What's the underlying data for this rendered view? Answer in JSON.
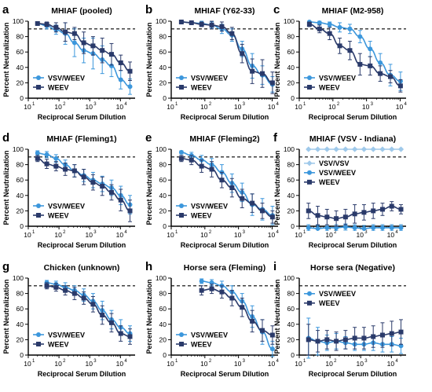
{
  "figure": {
    "shared": {
      "ylabel": "Percent Neutralization",
      "xlabel": "Reciprocal Serum Dilution",
      "y_ticks": [
        "0",
        "20",
        "40",
        "60",
        "80",
        "100"
      ],
      "x_ticks": [
        "10",
        "10",
        "10",
        "10",
        "10"
      ],
      "x_exponents": [
        "1",
        "2",
        "3",
        "4"
      ],
      "threshold": 90,
      "colors": {
        "VSV/WEEV": "#3c97dc",
        "WEEV": "#2a3a6a",
        "VSV/VSV": "#9fc9ea"
      }
    }
  },
  "chart_data": [
    {
      "type": "scatter",
      "letter": "a",
      "title": "MHIAF (pooled)",
      "xlabel": "Reciprocal Serum Dilution",
      "ylabel": "Percent Neutralization",
      "x_scale": "log",
      "xlim": [
        10,
        30000
      ],
      "ylim": [
        0,
        100
      ],
      "threshold": 90,
      "legend": "bottom-left",
      "series": [
        {
          "name": "VSV/WEEV",
          "x": [
            20,
            40,
            80,
            160,
            320,
            640,
            1280,
            2560,
            5120,
            10240,
            20480
          ],
          "y": [
            97,
            94,
            89,
            84,
            72,
            62,
            58,
            50,
            42,
            24,
            15
          ],
          "err": [
            2,
            4,
            6,
            14,
            18,
            16,
            20,
            18,
            14,
            12,
            10
          ]
        },
        {
          "name": "WEEV",
          "x": [
            20,
            40,
            80,
            160,
            320,
            640,
            1280,
            2560,
            5120,
            10240,
            20480
          ],
          "y": [
            97,
            96,
            92,
            86,
            84,
            72,
            68,
            62,
            57,
            46,
            35
          ],
          "err": [
            2,
            3,
            6,
            12,
            8,
            14,
            12,
            16,
            14,
            10,
            12
          ]
        }
      ]
    },
    {
      "type": "scatter",
      "letter": "b",
      "title": "MHIAF (Y62-33)",
      "xlabel": "Reciprocal Serum Dilution",
      "ylabel": "Percent Neutralization",
      "x_scale": "log",
      "xlim": [
        10,
        15000
      ],
      "ylim": [
        0,
        100
      ],
      "threshold": 90,
      "legend": "bottom-left",
      "series": [
        {
          "name": "VSV/WEEV",
          "x": [
            20,
            40,
            80,
            160,
            320,
            640,
            1280,
            2560,
            5120,
            10240
          ],
          "y": [
            99,
            98,
            97,
            95,
            90,
            82,
            64,
            42,
            30,
            18
          ],
          "err": [
            1,
            2,
            3,
            4,
            6,
            8,
            10,
            16,
            12,
            10
          ]
        },
        {
          "name": "WEEV",
          "x": [
            20,
            40,
            80,
            160,
            320,
            640,
            1280,
            2560,
            5120,
            10240
          ],
          "y": [
            99,
            98,
            96,
            95,
            93,
            84,
            58,
            35,
            32,
            20
          ],
          "err": [
            1,
            2,
            3,
            5,
            6,
            8,
            12,
            16,
            18,
            14
          ]
        }
      ]
    },
    {
      "type": "scatter",
      "letter": "c",
      "title": "MHIAF (M2-958)",
      "xlabel": "Reciprocal Serum Dilution",
      "ylabel": "Percent Neutralization",
      "x_scale": "log",
      "xlim": [
        10,
        15000
      ],
      "ylim": [
        0,
        100
      ],
      "threshold": 90,
      "legend": "bottom-left",
      "series": [
        {
          "name": "VSV/WEEV",
          "x": [
            20,
            40,
            80,
            160,
            320,
            640,
            1280,
            2560,
            5120,
            10240
          ],
          "y": [
            99,
            98,
            96,
            92,
            90,
            80,
            64,
            46,
            30,
            22
          ],
          "err": [
            1,
            2,
            3,
            6,
            6,
            8,
            10,
            12,
            14,
            12
          ]
        },
        {
          "name": "WEEV",
          "x": [
            20,
            40,
            80,
            160,
            320,
            640,
            1280,
            2560,
            5120,
            10240
          ],
          "y": [
            96,
            90,
            84,
            68,
            62,
            44,
            42,
            32,
            28,
            16
          ],
          "err": [
            3,
            5,
            8,
            10,
            12,
            14,
            12,
            10,
            8,
            8
          ]
        }
      ]
    },
    {
      "type": "scatter",
      "letter": "d",
      "title": "MHIAF (Fleming1)",
      "xlabel": "Reciprocal Serum Dilution",
      "ylabel": "Percent Neutralization",
      "x_scale": "log",
      "xlim": [
        10,
        30000
      ],
      "ylim": [
        0,
        100
      ],
      "threshold": 90,
      "legend": "bottom-left",
      "series": [
        {
          "name": "VSV/WEEV",
          "x": [
            20,
            40,
            80,
            160,
            320,
            640,
            1280,
            2560,
            5120,
            10240,
            20480
          ],
          "y": [
            95,
            93,
            88,
            80,
            72,
            66,
            60,
            55,
            50,
            40,
            28
          ],
          "err": [
            3,
            4,
            5,
            6,
            8,
            8,
            10,
            10,
            10,
            12,
            12
          ]
        },
        {
          "name": "WEEV",
          "x": [
            20,
            40,
            80,
            160,
            320,
            640,
            1280,
            2560,
            5120,
            10240,
            20480
          ],
          "y": [
            88,
            81,
            78,
            74,
            72,
            64,
            57,
            52,
            44,
            34,
            20
          ],
          "err": [
            4,
            6,
            6,
            8,
            8,
            10,
            10,
            12,
            10,
            14,
            14
          ]
        }
      ]
    },
    {
      "type": "scatter",
      "letter": "e",
      "title": "MHIAF (Fleming2)",
      "xlabel": "Reciprocal Serum Dilution",
      "ylabel": "Percent Neutralization",
      "x_scale": "log",
      "xlim": [
        10,
        15000
      ],
      "ylim": [
        0,
        100
      ],
      "threshold": 90,
      "legend": "bottom-left",
      "series": [
        {
          "name": "VSV/WEEV",
          "x": [
            20,
            40,
            80,
            160,
            320,
            640,
            1280,
            2560,
            5120,
            10240
          ],
          "y": [
            96,
            92,
            86,
            80,
            70,
            56,
            44,
            28,
            22,
            14
          ],
          "err": [
            2,
            4,
            6,
            8,
            10,
            12,
            12,
            14,
            14,
            12
          ]
        },
        {
          "name": "WEEV",
          "x": [
            20,
            40,
            80,
            160,
            320,
            640,
            1280,
            2560,
            5120,
            10240
          ],
          "y": [
            88,
            86,
            78,
            74,
            60,
            50,
            36,
            30,
            20,
            12
          ],
          "err": [
            4,
            6,
            8,
            10,
            10,
            12,
            12,
            12,
            10,
            8
          ]
        }
      ]
    },
    {
      "type": "scatter",
      "letter": "f",
      "title": "MHIAF (VSV - Indiana)",
      "xlabel": "Reciprocal Serum Dilution",
      "ylabel": "Percent Neutralization",
      "x_scale": "log",
      "xlim": [
        10,
        30000
      ],
      "ylim": [
        0,
        100
      ],
      "threshold": 90,
      "legend": "top-left",
      "series": [
        {
          "name": "VSV/VSV",
          "x": [
            20,
            40,
            80,
            160,
            320,
            640,
            1280,
            2560,
            5120,
            10240,
            20480
          ],
          "y": [
            100,
            100,
            100,
            100,
            100,
            100,
            100,
            100,
            100,
            100,
            100
          ],
          "err": [
            1,
            1,
            1,
            1,
            1,
            1,
            1,
            1,
            1,
            1,
            1
          ]
        },
        {
          "name": "VSV/WEEV",
          "x": [
            20,
            40,
            80,
            160,
            320,
            640,
            1280,
            2560,
            5120,
            10240,
            20480
          ],
          "y": [
            -2,
            -3,
            -2,
            -2,
            -1,
            -2,
            -3,
            -2,
            -2,
            -2,
            -2
          ],
          "err": [
            4,
            4,
            4,
            4,
            4,
            4,
            4,
            4,
            4,
            4,
            4
          ]
        },
        {
          "name": "WEEV",
          "x": [
            20,
            40,
            80,
            160,
            320,
            640,
            1280,
            2560,
            5120,
            10240,
            20480
          ],
          "y": [
            20,
            14,
            12,
            10,
            12,
            16,
            18,
            20,
            22,
            26,
            22
          ],
          "err": [
            10,
            12,
            10,
            10,
            10,
            12,
            10,
            10,
            8,
            6,
            6
          ]
        }
      ]
    },
    {
      "type": "scatter",
      "letter": "g",
      "title": "Chicken (unknown)",
      "xlabel": "Reciprocal Serum Dilution",
      "ylabel": "Percent Neutralization",
      "x_scale": "log",
      "xlim": [
        10,
        30000
      ],
      "ylim": [
        0,
        100
      ],
      "threshold": 90,
      "legend": "bottom-left",
      "series": [
        {
          "name": "VSV/WEEV",
          "x": [
            40,
            80,
            160,
            320,
            640,
            1280,
            2560,
            5120,
            10240,
            20480
          ],
          "y": [
            94,
            92,
            88,
            84,
            78,
            70,
            58,
            46,
            36,
            28
          ],
          "err": [
            3,
            4,
            6,
            6,
            8,
            10,
            12,
            12,
            10,
            10
          ]
        },
        {
          "name": "WEEV",
          "x": [
            40,
            80,
            160,
            320,
            640,
            1280,
            2560,
            5120,
            10240,
            20480
          ],
          "y": [
            90,
            88,
            84,
            80,
            74,
            66,
            52,
            42,
            28,
            24
          ],
          "err": [
            4,
            5,
            6,
            8,
            8,
            10,
            12,
            12,
            10,
            10
          ]
        }
      ]
    },
    {
      "type": "scatter",
      "letter": "h",
      "title": "Horse sera (Fleming)",
      "xlabel": "Reciprocal Serum Dilution",
      "ylabel": "Percent Neutralization",
      "x_scale": "log",
      "xlim": [
        10,
        15000
      ],
      "ylim": [
        0,
        100
      ],
      "threshold": 90,
      "legend": "bottom-left",
      "series": [
        {
          "name": "VSV/WEEV",
          "x": [
            80,
            160,
            320,
            640,
            1280,
            2560,
            5120,
            10240
          ],
          "y": [
            96,
            94,
            90,
            82,
            70,
            50,
            30,
            8
          ],
          "err": [
            3,
            4,
            6,
            8,
            10,
            14,
            16,
            10
          ]
        },
        {
          "name": "WEEV",
          "x": [
            80,
            160,
            320,
            640,
            1280,
            2560,
            5120,
            10240
          ],
          "y": [
            84,
            86,
            82,
            74,
            62,
            44,
            32,
            26
          ],
          "err": [
            6,
            6,
            8,
            10,
            12,
            14,
            14,
            12
          ]
        }
      ]
    },
    {
      "type": "scatter",
      "letter": "i",
      "title": "Horse sera (Negative)",
      "xlabel": "Reciprocal Serum Dilution",
      "ylabel": "Percent Neutralization",
      "x_scale": "log",
      "xlim": [
        10,
        30000
      ],
      "ylim": [
        0,
        100
      ],
      "threshold": 90,
      "legend": "top-left",
      "series": [
        {
          "name": "VSV/WEEV",
          "x": [
            20,
            40,
            80,
            160,
            320,
            640,
            1280,
            2560,
            5120,
            10240,
            20480
          ],
          "y": [
            22,
            18,
            16,
            18,
            16,
            14,
            14,
            16,
            14,
            14,
            12
          ],
          "err": [
            26,
            18,
            10,
            10,
            8,
            8,
            8,
            10,
            10,
            10,
            10
          ]
        },
        {
          "name": "WEEV",
          "x": [
            20,
            40,
            80,
            160,
            320,
            640,
            1280,
            2560,
            5120,
            10240,
            20480
          ],
          "y": [
            20,
            18,
            20,
            18,
            20,
            22,
            22,
            24,
            26,
            28,
            30
          ],
          "err": [
            20,
            14,
            12,
            12,
            12,
            14,
            14,
            14,
            16,
            16,
            16
          ]
        }
      ]
    }
  ]
}
